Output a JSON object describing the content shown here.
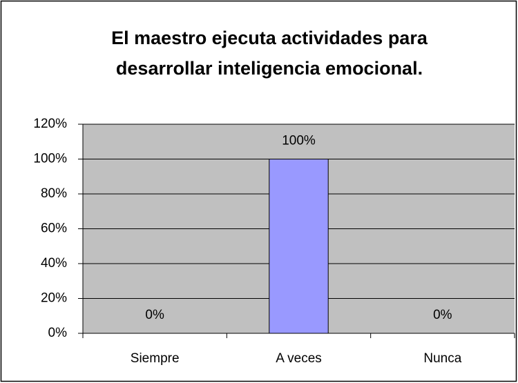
{
  "chart_data": {
    "type": "bar",
    "title": [
      "El maestro ejecuta  actividades para",
      "desarrollar  inteligencia  emocional."
    ],
    "categories": [
      "Siempre",
      "A veces",
      "Nunca"
    ],
    "values": [
      0,
      100,
      0
    ],
    "value_labels": [
      "0%",
      "100%",
      "0%"
    ],
    "color": "#9999ff",
    "ylim": [
      0,
      120
    ],
    "yticks": [
      {
        "value": 0,
        "label": "0%"
      },
      {
        "value": 20,
        "label": "20%"
      },
      {
        "value": 40,
        "label": "40%"
      },
      {
        "value": 60,
        "label": "60%"
      },
      {
        "value": 80,
        "label": "80%"
      },
      {
        "value": 100,
        "label": "100%"
      },
      {
        "value": 120,
        "label": "120%"
      }
    ],
    "grid": true
  }
}
